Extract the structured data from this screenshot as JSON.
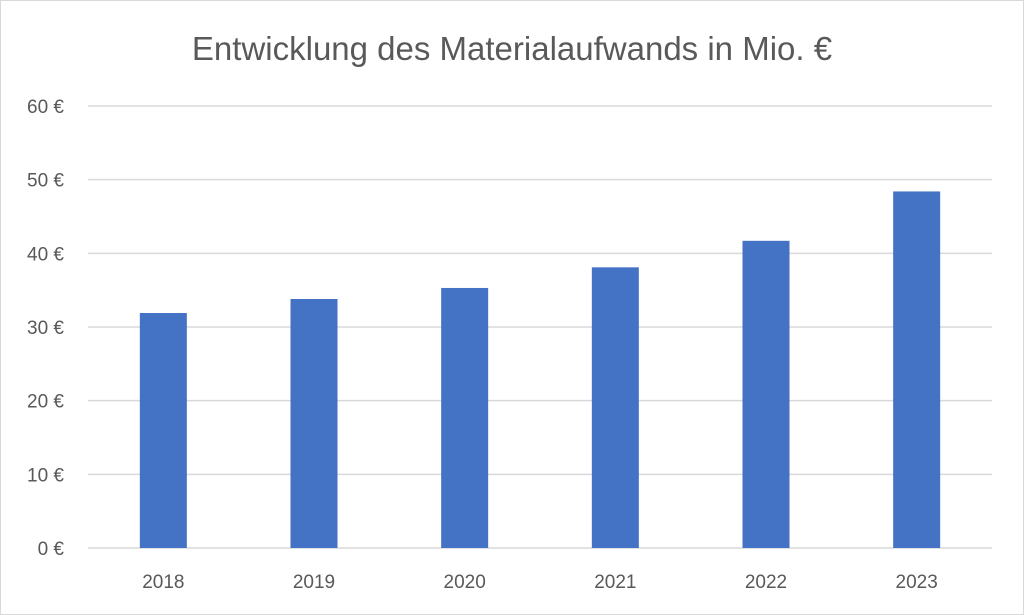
{
  "chart_data": {
    "type": "bar",
    "title": "Entwicklung des Materialaufwands in Mio. €",
    "xlabel": "",
    "ylabel": "",
    "categories": [
      "2018",
      "2019",
      "2020",
      "2021",
      "2022",
      "2023"
    ],
    "values": [
      31.9,
      33.8,
      35.3,
      38.1,
      41.7,
      48.4
    ],
    "ylim": [
      0,
      60
    ],
    "yticks": [
      0,
      10,
      20,
      30,
      40,
      50,
      60
    ],
    "ytick_labels": [
      "0 €",
      "10 €",
      "20 €",
      "30 €",
      "40 €",
      "50 €",
      "60 €"
    ],
    "grid": true,
    "legend": "none",
    "bar_color": "#4472c4"
  }
}
